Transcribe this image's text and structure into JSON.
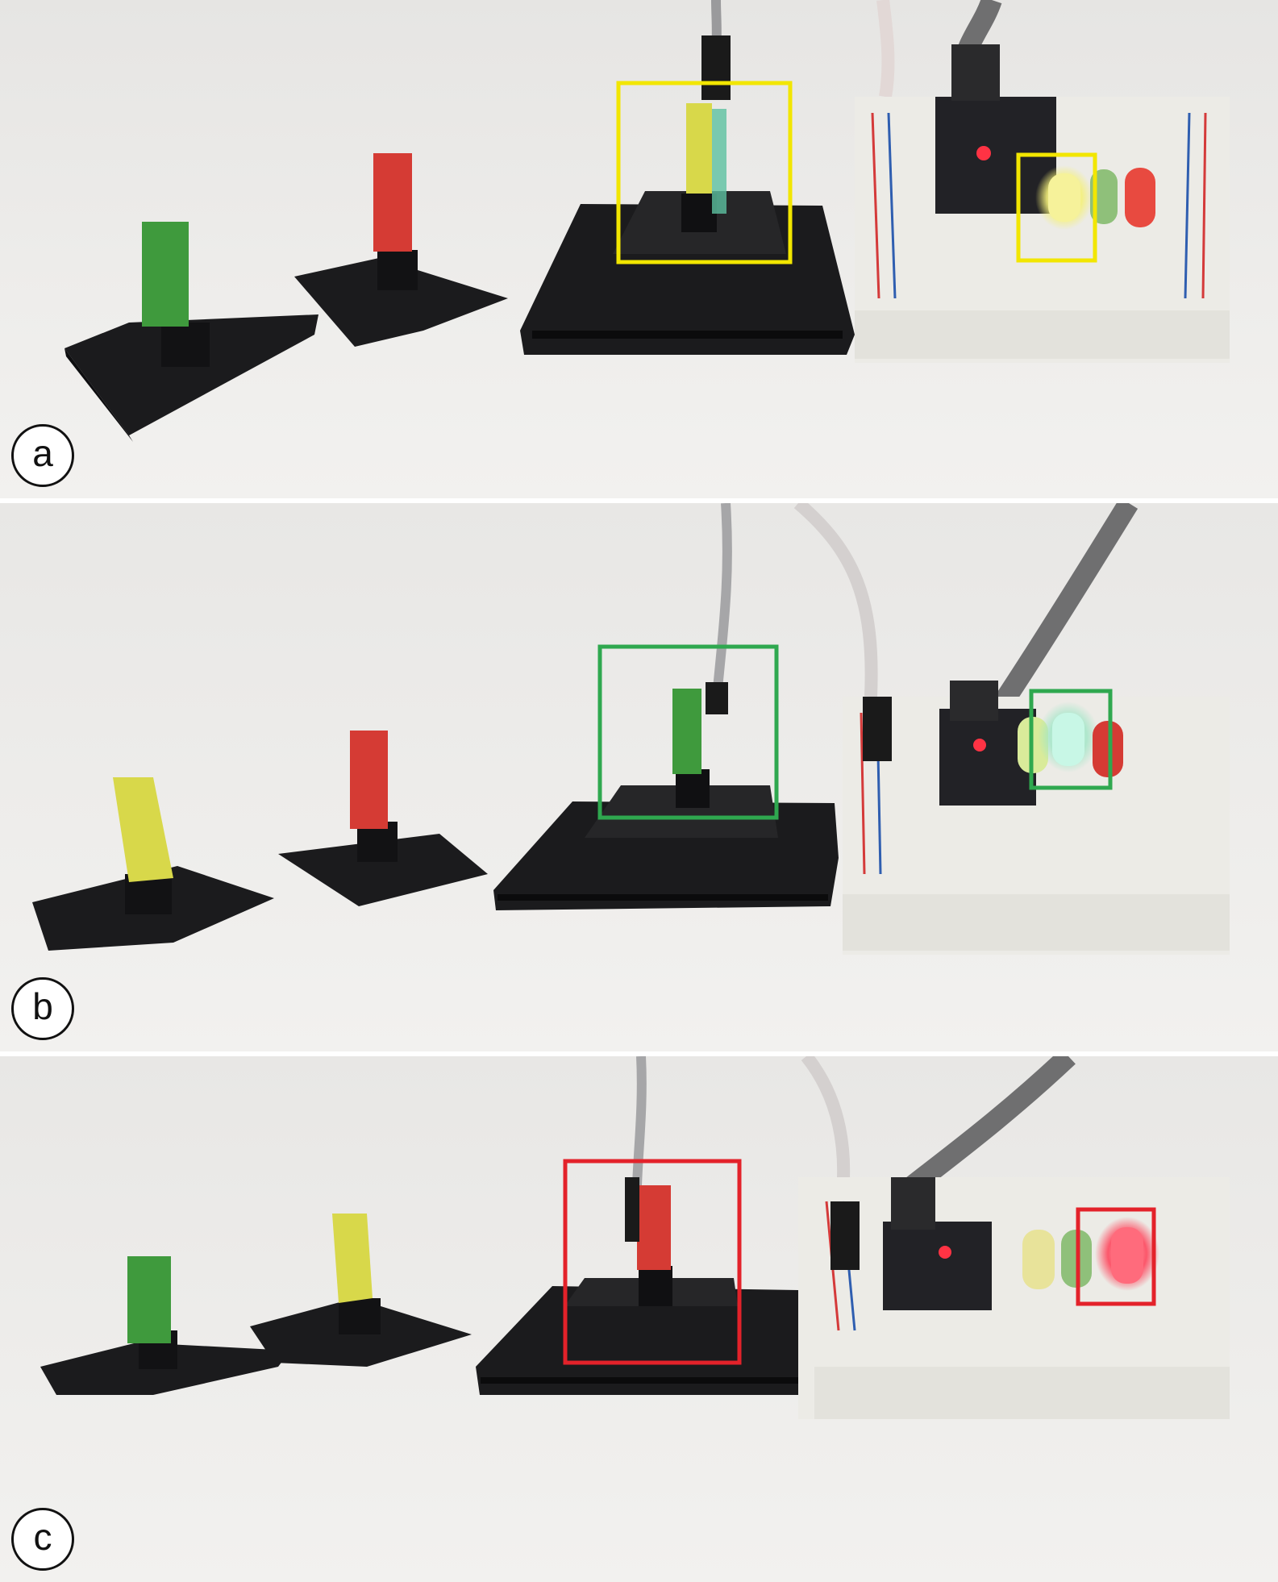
{
  "figure": {
    "panels": [
      {
        "label": "a",
        "active_flag": "yellow",
        "box_color": "#f2e600",
        "flags_order": [
          "green",
          "red",
          "yellow"
        ]
      },
      {
        "label": "b",
        "active_flag": "green",
        "box_color": "#2fa84f",
        "flags_order": [
          "yellow",
          "red",
          "green"
        ]
      },
      {
        "label": "c",
        "active_flag": "red",
        "box_color": "#e3222a",
        "flags_order": [
          "green",
          "yellow",
          "red"
        ]
      }
    ],
    "colors": {
      "green": "#3f9a3d",
      "red": "#d53b34",
      "yellow": "#d8d84a",
      "base_black": "#1b1b1d",
      "breadboard": "#ecebe6",
      "background": "#e9e8e6"
    }
  }
}
